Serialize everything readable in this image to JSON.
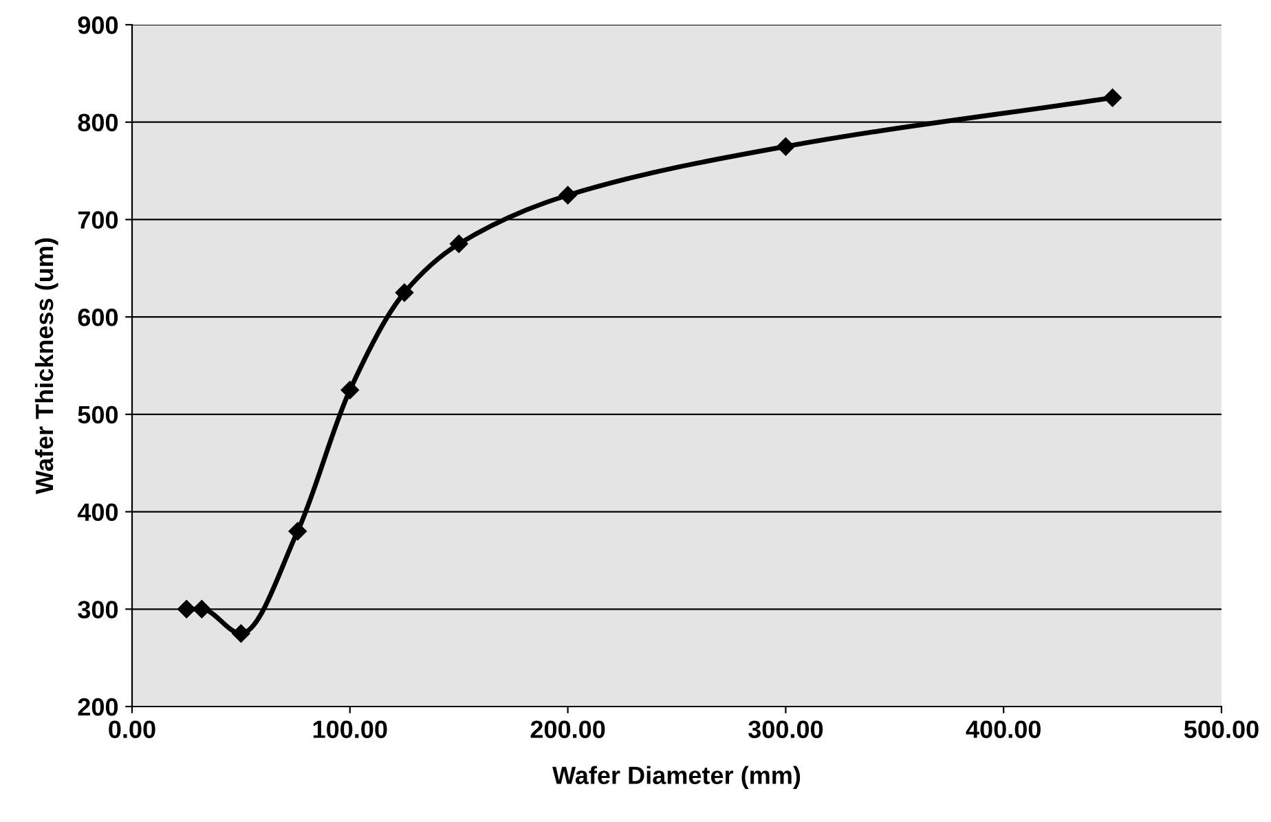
{
  "chart_data": {
    "type": "line",
    "xlabel": "Wafer Diameter (mm)",
    "ylabel": "Wafer Thickness (um)",
    "x": [
      25,
      32,
      50,
      76,
      100,
      125,
      150,
      200,
      300,
      450
    ],
    "series": [
      {
        "color": "#000000",
        "values": [
          300,
          300,
          275,
          380,
          525,
          625,
          675,
          725,
          775,
          825
        ]
      }
    ],
    "xlim": [
      0,
      500
    ],
    "ylim": [
      200,
      900
    ],
    "xticks": [
      {
        "value": 0,
        "label": "0.00"
      },
      {
        "value": 100,
        "label": "100.00"
      },
      {
        "value": 200,
        "label": "200.00"
      },
      {
        "value": 300,
        "label": "300.00"
      },
      {
        "value": 400,
        "label": "400.00"
      },
      {
        "value": 500,
        "label": "500.00"
      }
    ],
    "yticks": [
      200,
      300,
      400,
      500,
      600,
      700,
      800,
      900
    ],
    "grid": "y",
    "marker": "diamond",
    "line_style": "solid"
  }
}
